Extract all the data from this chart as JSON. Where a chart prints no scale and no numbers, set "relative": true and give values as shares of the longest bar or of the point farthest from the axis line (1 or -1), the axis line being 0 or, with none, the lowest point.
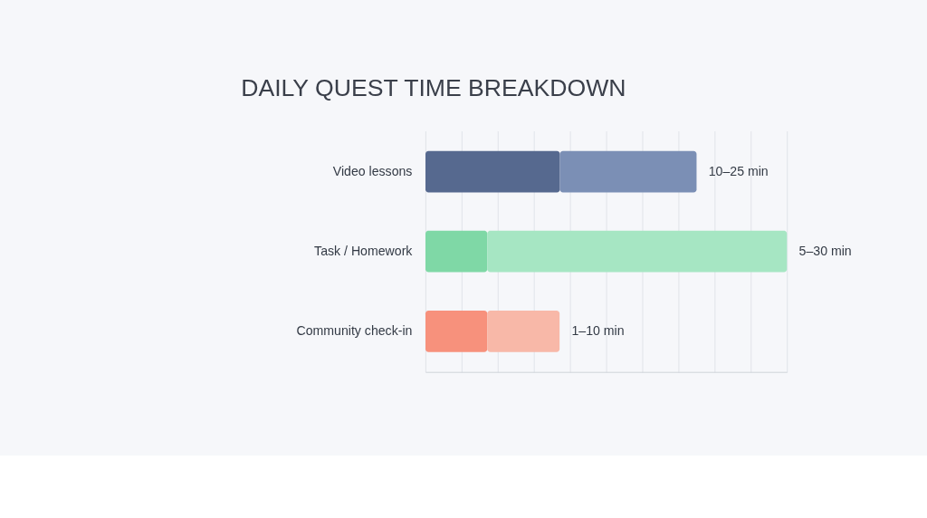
{
  "chart_data": {
    "type": "bar",
    "title": "DAILY QUEST TIME BREAKDOWN",
    "orientation": "horizontal",
    "stacked": true,
    "relative": true,
    "grid": "x",
    "categories": [
      "Video lessons",
      "Task / Homework",
      "Community check-in"
    ],
    "series": [
      {
        "colors": [
          "#56698f",
          "#7fd8a6",
          "#f7917c"
        ],
        "values": [
          0.372,
          0.171,
          0.171
        ]
      },
      {
        "colors": [
          "#7b8fb5",
          "#a6e6c3",
          "#f8b8a8"
        ],
        "values": [
          0.378,
          0.829,
          0.2
        ]
      }
    ],
    "totals": [
      "10–25 min",
      "5–30 min",
      "1–10 min"
    ]
  }
}
